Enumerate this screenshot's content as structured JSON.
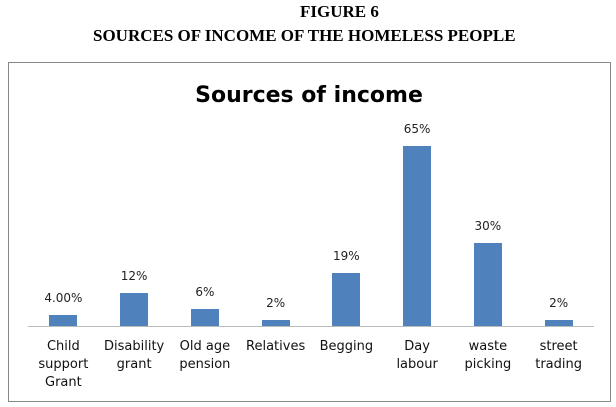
{
  "figure_label": "FIGURE 6",
  "caption": "SOURCES OF INCOME OF THE HOMELESS PEOPLE",
  "chart_data": {
    "type": "bar",
    "title": "Sources of income",
    "categories": [
      "Child support Grant",
      "Disability grant",
      "Old age pension",
      "Relatives",
      "Begging",
      "Day labour",
      "waste picking",
      "street trading"
    ],
    "values": [
      4,
      12,
      6,
      2,
      19,
      65,
      30,
      2
    ],
    "value_labels": [
      "4.00%",
      "12%",
      "6%",
      "2%",
      "19%",
      "65%",
      "30%",
      "2%"
    ],
    "color": "#4f81bd"
  }
}
